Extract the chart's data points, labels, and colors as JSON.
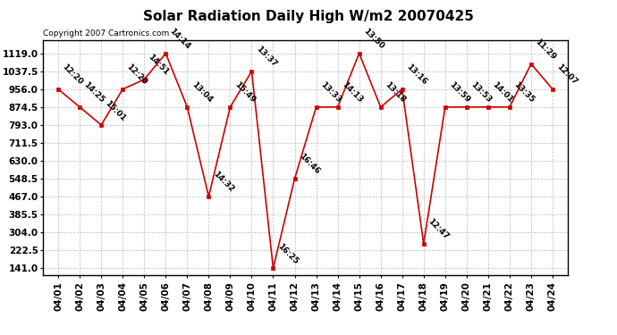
{
  "title": "Solar Radiation Daily High W/m2 20070425",
  "copyright": "Copyright 2007 Cartronics.com",
  "dates": [
    "04/01",
    "04/02",
    "04/03",
    "04/04",
    "04/05",
    "04/06",
    "04/07",
    "04/08",
    "04/09",
    "04/10",
    "04/11",
    "04/12",
    "04/13",
    "04/14",
    "04/15",
    "04/16",
    "04/17",
    "04/18",
    "04/19",
    "04/20",
    "04/21",
    "04/22",
    "04/23",
    "04/24"
  ],
  "values": [
    956.0,
    874.5,
    793.0,
    956.0,
    1000.0,
    1119.0,
    874.5,
    467.0,
    874.5,
    1037.5,
    141.0,
    548.5,
    874.5,
    874.5,
    1119.0,
    874.5,
    956.0,
    252.0,
    874.5,
    874.5,
    874.5,
    874.5,
    1071.0,
    956.0
  ],
  "labels": [
    "12:20",
    "14:25",
    "15:01",
    "12:20",
    "14:51",
    "14:14",
    "13:04",
    "14:32",
    "15:49",
    "13:37",
    "16:25",
    "16:46",
    "13:33",
    "14:13",
    "13:50",
    "13:18",
    "13:16",
    "12:47",
    "13:59",
    "13:53",
    "14:01",
    "13:35",
    "11:29",
    "12:07"
  ],
  "ymin": 141.0,
  "ymax": 1119.0,
  "yticks": [
    141.0,
    222.5,
    304.0,
    385.5,
    467.0,
    548.5,
    630.0,
    711.5,
    793.0,
    874.5,
    956.0,
    1037.5,
    1119.0
  ],
  "line_color": "#cc0000",
  "marker_color": "#cc0000",
  "bg_color": "#ffffff",
  "plot_bg_color": "#ffffff",
  "grid_color": "#bbbbbb",
  "title_fontsize": 11,
  "label_fontsize": 6.5,
  "copyright_fontsize": 6.5,
  "tick_fontsize": 7.5
}
